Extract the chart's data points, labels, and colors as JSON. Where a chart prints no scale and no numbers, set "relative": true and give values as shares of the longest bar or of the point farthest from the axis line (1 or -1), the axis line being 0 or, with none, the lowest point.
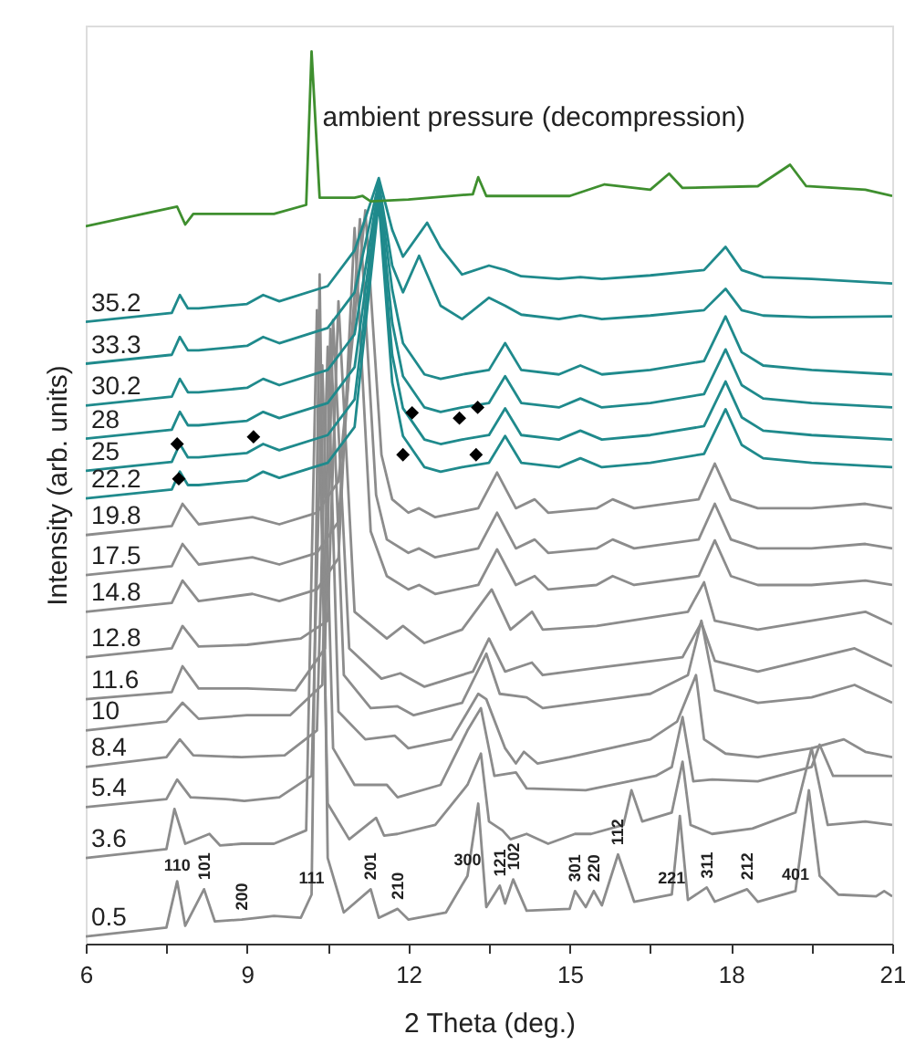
{
  "chart_data": {
    "type": "line",
    "relative": true,
    "xlabel": "2 Theta (deg.)",
    "ylabel": "Intensity (arb. units)",
    "xlim": [
      6,
      21
    ],
    "xticks": [
      6,
      {
        "value": 7.5,
        "label": null
      },
      9,
      {
        "value": 10.5,
        "label": null
      },
      12,
      {
        "value": 13.5,
        "label": null
      },
      15,
      {
        "value": 16.5,
        "label": null
      },
      18,
      {
        "value": 19.5,
        "label": null
      },
      21
    ],
    "grid": false,
    "line_style": "solid",
    "series": [
      {
        "name": "0.5",
        "color": "#8c8c8c",
        "x": [
          6,
          7.5,
          7.7,
          7.85,
          8.2,
          8.4,
          8.9,
          9.5,
          10.0,
          10.2,
          10.35,
          10.5,
          10.8,
          11.3,
          11.45,
          11.8,
          12.0,
          12.7,
          13.1,
          13.3,
          13.45,
          13.7,
          13.8,
          13.95,
          14.2,
          15.0,
          15.1,
          15.3,
          15.45,
          15.6,
          15.9,
          16.2,
          16.9,
          17.05,
          17.2,
          17.55,
          17.7,
          18.3,
          18.5,
          19.2,
          19.45,
          19.65,
          20.0,
          20.7,
          20.85,
          21
        ],
        "values": [
          0.008,
          0.018,
          0.07,
          0.02,
          0.061,
          0.025,
          0.027,
          0.031,
          0.029,
          0.055,
          0.75,
          0.096,
          0.035,
          0.061,
          0.029,
          0.039,
          0.027,
          0.035,
          0.076,
          0.157,
          0.041,
          0.065,
          0.045,
          0.072,
          0.037,
          0.039,
          0.059,
          0.041,
          0.059,
          0.043,
          0.1,
          0.047,
          0.055,
          0.143,
          0.049,
          0.063,
          0.047,
          0.061,
          0.047,
          0.059,
          0.172,
          0.076,
          0.055,
          0.053,
          0.059,
          0.053
        ]
      },
      {
        "name": "3.6",
        "color": "#8c8c8c",
        "x": [
          6,
          7.5,
          7.65,
          7.85,
          8.3,
          8.5,
          8.9,
          9.5,
          10.1,
          10.3,
          10.5,
          10.9,
          11.4,
          11.55,
          11.8,
          12.5,
          13.1,
          13.35,
          13.5,
          13.75,
          13.9,
          14.2,
          14.6,
          15.1,
          15.4,
          16.0,
          16.15,
          16.35,
          16.9,
          17.1,
          17.25,
          17.65,
          18.4,
          19.2,
          19.5,
          19.8,
          20.5,
          21
        ],
        "values": [
          0.096,
          0.106,
          0.151,
          0.112,
          0.123,
          0.11,
          0.112,
          0.112,
          0.127,
          0.71,
          0.157,
          0.117,
          0.141,
          0.121,
          0.123,
          0.133,
          0.178,
          0.213,
          0.137,
          0.127,
          0.117,
          0.123,
          0.112,
          0.123,
          0.123,
          0.133,
          0.172,
          0.137,
          0.147,
          0.204,
          0.133,
          0.123,
          0.129,
          0.147,
          0.219,
          0.133,
          0.137,
          0.133
        ]
      },
      {
        "name": "5.4",
        "color": "#8c8c8c",
        "x": [
          6,
          7.5,
          7.7,
          7.95,
          8.6,
          8.95,
          9.6,
          10.2,
          10.4,
          10.6,
          11.0,
          11.6,
          11.8,
          12.6,
          13.1,
          13.35,
          13.6,
          14.0,
          14.2,
          15.3,
          16.6,
          16.9,
          17.1,
          17.3,
          17.65,
          18.5,
          19.5,
          19.65,
          19.9,
          21
        ],
        "values": [
          0.153,
          0.162,
          0.184,
          0.164,
          0.162,
          0.16,
          0.164,
          0.188,
          0.648,
          0.219,
          0.178,
          0.178,
          0.164,
          0.178,
          0.239,
          0.264,
          0.188,
          0.192,
          0.174,
          0.172,
          0.188,
          0.198,
          0.254,
          0.182,
          0.184,
          0.182,
          0.198,
          0.223,
          0.188,
          0.188
        ]
      },
      {
        "name": "8.4",
        "color": "#8c8c8c",
        "x": [
          6,
          7.5,
          7.75,
          8.0,
          8.9,
          9.7,
          10.3,
          10.5,
          10.7,
          11.2,
          11.75,
          12.0,
          12.8,
          13.3,
          13.45,
          13.8,
          14.0,
          14.15,
          14.4,
          15.0,
          16.5,
          17.0,
          17.35,
          17.5,
          17.9,
          18.5,
          19.5,
          20.1,
          20.5,
          21
        ],
        "values": [
          0.198,
          0.209,
          0.229,
          0.211,
          0.209,
          0.211,
          0.239,
          0.669,
          0.26,
          0.229,
          0.233,
          0.219,
          0.229,
          0.28,
          0.274,
          0.219,
          0.202,
          0.215,
          0.202,
          0.209,
          0.229,
          0.249,
          0.301,
          0.229,
          0.213,
          0.209,
          0.219,
          0.229,
          0.215,
          0.209
        ]
      },
      {
        "name": "10",
        "color": "#8c8c8c",
        "x": [
          6,
          7.5,
          7.8,
          8.1,
          9.0,
          9.8,
          10.4,
          10.55,
          10.8,
          11.3,
          11.8,
          12.1,
          13.0,
          13.45,
          13.7,
          14.2,
          14.5,
          16.5,
          17.2,
          17.45,
          17.7,
          18.5,
          19.5,
          20.3,
          21
        ],
        "values": [
          0.239,
          0.249,
          0.27,
          0.252,
          0.256,
          0.256,
          0.29,
          0.689,
          0.301,
          0.264,
          0.266,
          0.256,
          0.27,
          0.325,
          0.28,
          0.276,
          0.264,
          0.28,
          0.301,
          0.362,
          0.284,
          0.27,
          0.276,
          0.29,
          0.27
        ]
      },
      {
        "name": "11.6",
        "color": "#8c8c8c",
        "x": [
          6,
          7.6,
          7.8,
          8.1,
          9.0,
          9.9,
          10.45,
          10.6,
          10.9,
          11.5,
          11.85,
          12.3,
          13.2,
          13.5,
          13.8,
          14.3,
          14.5,
          15.5,
          17.1,
          17.45,
          17.7,
          18.5,
          20.3,
          21
        ],
        "values": [
          0.274,
          0.282,
          0.311,
          0.286,
          0.286,
          0.284,
          0.331,
          0.699,
          0.331,
          0.297,
          0.303,
          0.288,
          0.305,
          0.342,
          0.305,
          0.315,
          0.301,
          0.309,
          0.321,
          0.36,
          0.317,
          0.305,
          0.331,
          0.311
        ]
      },
      {
        "name": "12.8",
        "color": "#8c8c8c",
        "x": [
          6,
          7.6,
          7.8,
          8.1,
          9.0,
          10.0,
          10.5,
          10.7,
          11.0,
          11.6,
          11.9,
          12.3,
          13.0,
          13.55,
          13.9,
          14.3,
          14.5,
          15.5,
          17.2,
          17.5,
          17.7,
          18.5,
          20.5,
          21
        ],
        "values": [
          0.321,
          0.331,
          0.356,
          0.333,
          0.335,
          0.342,
          0.362,
          0.72,
          0.372,
          0.342,
          0.356,
          0.337,
          0.352,
          0.397,
          0.352,
          0.372,
          0.352,
          0.356,
          0.372,
          0.405,
          0.362,
          0.352,
          0.372,
          0.358
        ]
      },
      {
        "name": "14.8",
        "color": "#8c8c8c",
        "x": [
          6,
          7.6,
          7.8,
          8.1,
          9.1,
          9.6,
          10.3,
          10.7,
          11.0,
          11.3,
          11.6,
          12.0,
          12.2,
          12.5,
          13.3,
          13.65,
          14.0,
          14.35,
          14.6,
          15.5,
          15.8,
          16.2,
          17.4,
          17.7,
          18.0,
          18.5,
          19.5,
          20.5,
          21
        ],
        "values": [
          0.372,
          0.382,
          0.407,
          0.384,
          0.392,
          0.384,
          0.397,
          0.432,
          0.802,
          0.462,
          0.412,
          0.397,
          0.402,
          0.392,
          0.402,
          0.442,
          0.402,
          0.412,
          0.397,
          0.402,
          0.412,
          0.402,
          0.412,
          0.452,
          0.412,
          0.402,
          0.402,
          0.407,
          0.402
        ]
      },
      {
        "name": "17.5",
        "color": "#8c8c8c",
        "x": [
          6,
          7.6,
          7.8,
          8.1,
          9.1,
          9.6,
          10.3,
          10.7,
          11.1,
          11.4,
          11.6,
          12.0,
          12.2,
          12.5,
          13.3,
          13.65,
          14.0,
          14.35,
          14.6,
          15.5,
          15.8,
          16.2,
          17.4,
          17.7,
          18.0,
          18.5,
          19.5,
          20.5,
          21
        ],
        "values": [
          0.413,
          0.423,
          0.448,
          0.425,
          0.433,
          0.425,
          0.438,
          0.473,
          0.812,
          0.503,
          0.453,
          0.438,
          0.443,
          0.433,
          0.443,
          0.483,
          0.443,
          0.453,
          0.438,
          0.443,
          0.453,
          0.443,
          0.453,
          0.493,
          0.453,
          0.443,
          0.443,
          0.448,
          0.443
        ]
      },
      {
        "name": "19.8",
        "color": "#8c8c8c",
        "x": [
          6,
          7.6,
          7.8,
          8.1,
          9.1,
          9.6,
          10.3,
          10.7,
          11.2,
          11.5,
          11.7,
          12.0,
          12.2,
          12.5,
          13.3,
          13.65,
          14.0,
          14.35,
          14.6,
          15.5,
          15.8,
          16.2,
          17.4,
          17.7,
          18.0,
          18.5,
          19.5,
          20.5,
          21
        ],
        "values": [
          0.458,
          0.468,
          0.493,
          0.47,
          0.478,
          0.47,
          0.483,
          0.518,
          0.822,
          0.548,
          0.498,
          0.483,
          0.488,
          0.478,
          0.488,
          0.528,
          0.488,
          0.498,
          0.483,
          0.488,
          0.498,
          0.488,
          0.498,
          0.538,
          0.498,
          0.488,
          0.488,
          0.493,
          0.488
        ]
      },
      {
        "name": "22.2",
        "color": "#1f8a8c",
        "x": [
          6,
          7.6,
          7.75,
          7.9,
          8.1,
          9.0,
          9.3,
          9.6,
          10.5,
          11.0,
          11.45,
          11.7,
          11.9,
          12.3,
          12.6,
          13.0,
          13.5,
          13.8,
          14.1,
          14.8,
          15.2,
          15.6,
          16.5,
          17.5,
          17.9,
          18.2,
          18.6,
          19.5,
          21
        ],
        "values": [
          0.499,
          0.509,
          0.529,
          0.514,
          0.514,
          0.519,
          0.529,
          0.522,
          0.539,
          0.579,
          0.832,
          0.629,
          0.569,
          0.534,
          0.529,
          0.534,
          0.539,
          0.569,
          0.539,
          0.534,
          0.544,
          0.534,
          0.539,
          0.549,
          0.599,
          0.559,
          0.544,
          0.539,
          0.534
        ]
      },
      {
        "name": "25",
        "color": "#1f8a8c",
        "x": [
          6,
          7.6,
          7.75,
          7.9,
          8.1,
          9.0,
          9.3,
          9.6,
          10.5,
          11.0,
          11.45,
          11.7,
          11.9,
          12.3,
          12.6,
          13.0,
          13.5,
          13.8,
          14.1,
          14.8,
          15.2,
          15.6,
          16.5,
          17.5,
          17.9,
          18.2,
          18.6,
          19.5,
          21
        ],
        "values": [
          0.53,
          0.54,
          0.56,
          0.545,
          0.545,
          0.55,
          0.56,
          0.553,
          0.57,
          0.61,
          0.838,
          0.66,
          0.6,
          0.565,
          0.56,
          0.565,
          0.57,
          0.6,
          0.57,
          0.565,
          0.575,
          0.565,
          0.57,
          0.58,
          0.63,
          0.59,
          0.575,
          0.57,
          0.565
        ]
      },
      {
        "name": "28",
        "color": "#1f8a8c",
        "x": [
          6,
          7.6,
          7.75,
          7.9,
          8.1,
          9.0,
          9.3,
          9.6,
          10.5,
          11.0,
          11.45,
          11.7,
          11.9,
          12.3,
          12.6,
          13.0,
          13.5,
          13.8,
          14.1,
          14.8,
          15.2,
          15.6,
          16.5,
          17.5,
          17.9,
          18.2,
          18.6,
          19.5,
          21
        ],
        "values": [
          0.566,
          0.576,
          0.596,
          0.581,
          0.581,
          0.586,
          0.596,
          0.589,
          0.606,
          0.646,
          0.843,
          0.696,
          0.636,
          0.601,
          0.596,
          0.601,
          0.606,
          0.636,
          0.606,
          0.601,
          0.611,
          0.601,
          0.606,
          0.616,
          0.666,
          0.626,
          0.611,
          0.606,
          0.601
        ]
      },
      {
        "name": "30.2",
        "color": "#1f8a8c",
        "x": [
          6,
          7.6,
          7.75,
          7.9,
          8.1,
          9.0,
          9.3,
          9.6,
          10.5,
          11.0,
          11.45,
          11.7,
          11.9,
          12.3,
          12.6,
          13.0,
          13.5,
          13.8,
          14.1,
          14.8,
          15.2,
          15.6,
          16.5,
          17.5,
          17.9,
          18.2,
          18.6,
          19.5,
          21
        ],
        "values": [
          0.603,
          0.613,
          0.633,
          0.618,
          0.618,
          0.623,
          0.633,
          0.626,
          0.643,
          0.683,
          0.848,
          0.733,
          0.673,
          0.638,
          0.633,
          0.638,
          0.643,
          0.673,
          0.643,
          0.638,
          0.648,
          0.638,
          0.643,
          0.653,
          0.703,
          0.663,
          0.648,
          0.643,
          0.638
        ]
      },
      {
        "name": "33.3",
        "color": "#1f8a8c",
        "x": [
          6,
          7.6,
          7.75,
          7.9,
          8.1,
          9.0,
          9.3,
          9.6,
          10.5,
          11.0,
          11.45,
          11.7,
          11.9,
          12.2,
          12.6,
          13.0,
          13.5,
          13.8,
          14.1,
          14.8,
          15.2,
          15.6,
          16.5,
          17.5,
          17.9,
          18.2,
          18.6,
          19.5,
          21
        ],
        "values": [
          0.65,
          0.66,
          0.68,
          0.665,
          0.665,
          0.67,
          0.68,
          0.673,
          0.69,
          0.73,
          0.853,
          0.76,
          0.73,
          0.771,
          0.715,
          0.7,
          0.724,
          0.715,
          0.705,
          0.7,
          0.704,
          0.7,
          0.704,
          0.71,
          0.734,
          0.71,
          0.704,
          0.702,
          0.703
        ]
      },
      {
        "name": "35.2",
        "color": "#1f8a8c",
        "x": [
          6,
          7.6,
          7.75,
          7.9,
          8.1,
          9.0,
          9.3,
          9.6,
          10.5,
          11.0,
          11.45,
          11.7,
          11.9,
          12.35,
          12.6,
          13.0,
          13.5,
          13.8,
          14.1,
          14.8,
          15.2,
          15.6,
          16.5,
          17.5,
          17.9,
          18.2,
          18.6,
          19.5,
          21
        ],
        "values": [
          0.697,
          0.707,
          0.727,
          0.712,
          0.712,
          0.717,
          0.727,
          0.72,
          0.737,
          0.777,
          0.858,
          0.8,
          0.77,
          0.808,
          0.78,
          0.75,
          0.76,
          0.755,
          0.748,
          0.745,
          0.747,
          0.745,
          0.749,
          0.755,
          0.781,
          0.755,
          0.747,
          0.745,
          0.74
        ]
      },
      {
        "name": "ambient pressure (decompression)",
        "color": "#3f8f2f",
        "x": [
          6,
          7.7,
          7.85,
          8.0,
          9.5,
          10.1,
          10.2,
          10.35,
          11.0,
          11.15,
          11.3,
          12.0,
          13.2,
          13.3,
          13.45,
          15.0,
          15.65,
          16.5,
          16.85,
          17.1,
          18.5,
          19.1,
          19.4,
          20.5,
          21
        ],
        "values": [
          0.804,
          0.826,
          0.806,
          0.818,
          0.818,
          0.828,
          1,
          0.836,
          0.836,
          0.838,
          0.832,
          0.834,
          0.84,
          0.859,
          0.838,
          0.838,
          0.851,
          0.845,
          0.863,
          0.847,
          0.849,
          0.873,
          0.849,
          0.845,
          0.838
        ]
      },
      {
        "type": "scatter",
        "marker": "diamond",
        "color": "#000000",
        "x": [
          7.7,
          9.12,
          7.73,
          12.07,
          12.95,
          13.29,
          11.9,
          13.26
        ],
        "values": [
          0.56,
          0.568,
          0.521,
          0.595,
          0.589,
          0.601,
          0.548,
          0.548
        ]
      }
    ],
    "annotations": [
      {
        "text": "110",
        "x": 7.7,
        "y": 0.07
      },
      {
        "text": "101",
        "x": 8.2,
        "y": 0.061
      },
      {
        "text": "200",
        "x": 8.9,
        "y": 0.027
      },
      {
        "text": "111",
        "x": 10.2,
        "y": 0.055
      },
      {
        "text": "201",
        "x": 11.3,
        "y": 0.061
      },
      {
        "text": "210",
        "x": 11.8,
        "y": 0.039
      },
      {
        "text": "300",
        "x": 13.1,
        "y": 0.076
      },
      {
        "text": "121",
        "x": 13.7,
        "y": 0.065
      },
      {
        "text": "102",
        "x": 13.95,
        "y": 0.072
      },
      {
        "text": "301",
        "x": 15.1,
        "y": 0.059
      },
      {
        "text": "220",
        "x": 15.45,
        "y": 0.059
      },
      {
        "text": "112",
        "x": 15.9,
        "y": 0.1
      },
      {
        "text": "221",
        "x": 16.9,
        "y": 0.055
      },
      {
        "text": "311",
        "x": 17.55,
        "y": 0.063
      },
      {
        "text": "212",
        "x": 18.3,
        "y": 0.061
      },
      {
        "text": "401",
        "x": 19.2,
        "y": 0.059
      }
    ]
  }
}
